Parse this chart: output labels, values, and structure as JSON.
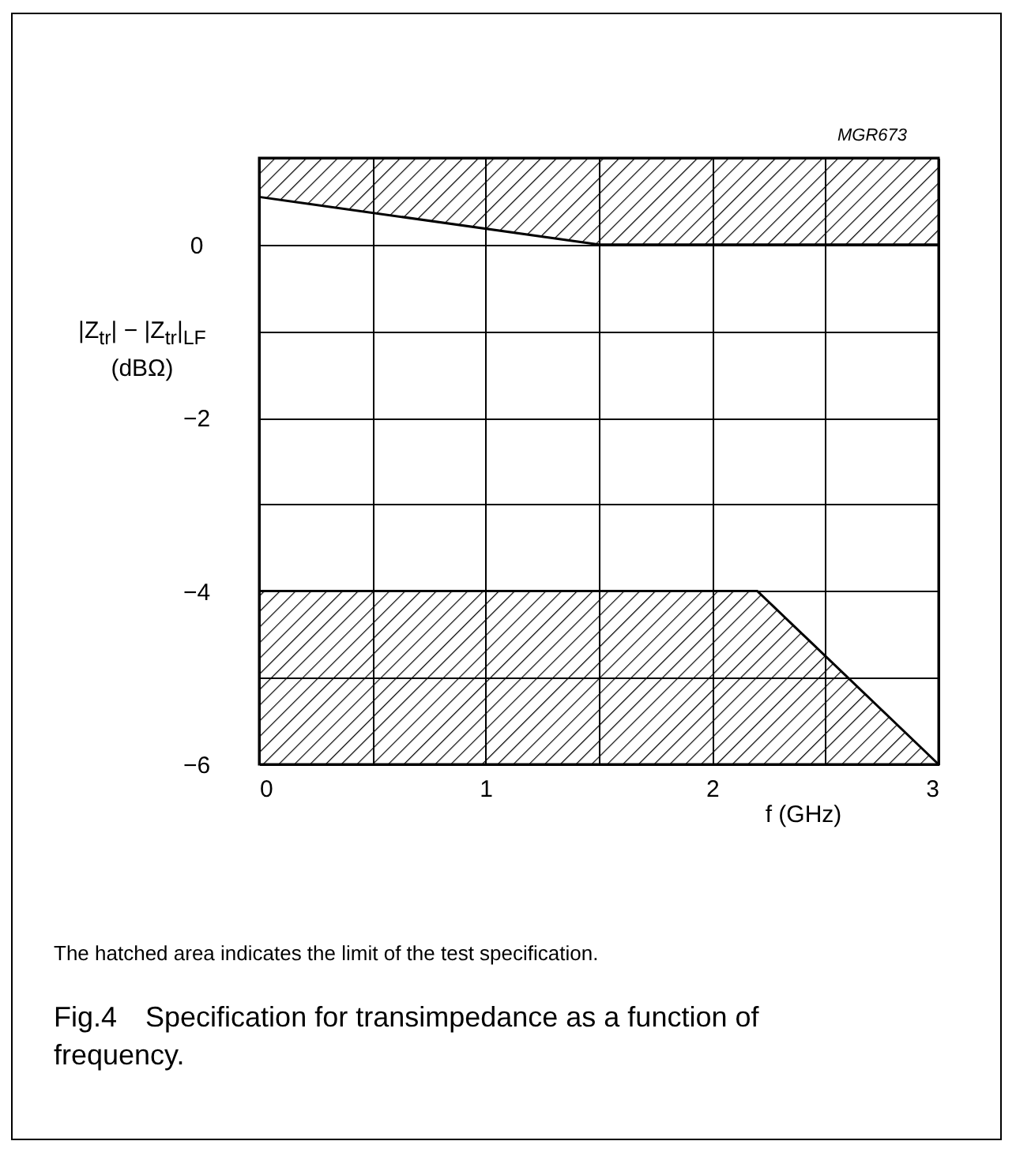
{
  "chart_data": {
    "type": "line",
    "xlabel": "f (GHz)",
    "ylabel": "|Z$_{tr}$| − |Z$_{tr}$|$_{LF}$\n(dBΩ)",
    "xlim": [
      0,
      3
    ],
    "ylim": [
      -6,
      1
    ],
    "xticks": [
      0,
      {
        "value": 0.5,
        "label": null
      },
      1,
      {
        "value": 1.5,
        "label": null
      },
      2,
      {
        "value": 2.5,
        "label": null
      },
      3
    ],
    "yticks": [
      {
        "value": -6,
        "label": "−6"
      },
      {
        "value": -5,
        "label": null
      },
      {
        "value": -4,
        "label": "−4"
      },
      {
        "value": -3,
        "label": null
      },
      {
        "value": -2,
        "label": "−2"
      },
      {
        "value": -1,
        "label": null
      },
      0,
      {
        "value": 1,
        "label": null
      }
    ],
    "grid": true,
    "series": [
      {
        "color": "#000000",
        "x": [
          0,
          1.5,
          3
        ],
        "values": [
          0.55,
          0,
          0
        ],
        "lower": [
          0.55,
          0,
          0
        ],
        "upper": [
          1,
          1,
          1
        ]
      },
      {
        "color": "#000000",
        "x": [
          0,
          2.2,
          3
        ],
        "values": [
          -4,
          -4,
          -6
        ],
        "lower": [
          -6,
          -6,
          -6
        ],
        "upper": [
          -4,
          -4,
          -6
        ]
      }
    ],
    "annotations": [
      "MGR673",
      "The hatched area indicates the limit of the test specification.",
      "Fig.4 Specification for transimpedance as a function of frequency."
    ]
  }
}
